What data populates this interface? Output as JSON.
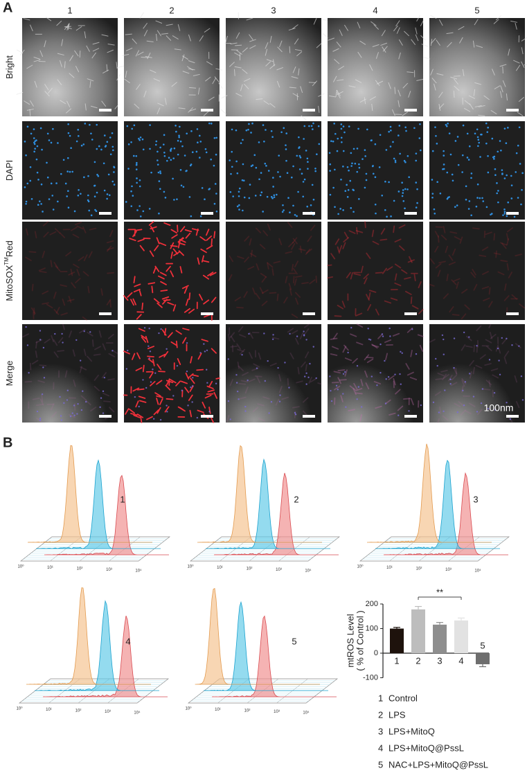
{
  "figure": {
    "panel_a": {
      "label": "A",
      "columns": [
        "1",
        "2",
        "3",
        "4",
        "5"
      ],
      "rows": [
        {
          "label": "Bright"
        },
        {
          "label": "DAPI"
        },
        {
          "label": "MitoSOX",
          "superscript": "TM",
          "suffix": "Red"
        },
        {
          "label": "Merge"
        }
      ],
      "scale_bar_label": "100nm"
    },
    "panel_b": {
      "label": "B",
      "histograms": [
        "1",
        "2",
        "3",
        "4",
        "5"
      ],
      "axis_ticks": [
        "10⁰",
        "10¹",
        "10²",
        "10³",
        "10⁴"
      ]
    }
  },
  "chart_data": {
    "type": "bar",
    "ylabel_lines": [
      "mtROS Level",
      "( % of Control )"
    ],
    "categories": [
      "1",
      "2",
      "3",
      "4",
      "5"
    ],
    "values": [
      100,
      178,
      116,
      133,
      -45
    ],
    "errors": [
      5,
      12,
      9,
      10,
      10
    ],
    "colors": [
      "#1e120c",
      "#bdbdbd",
      "#8e8e8e",
      "#e2e2e2",
      "#6e6e6e"
    ],
    "ylim": [
      -100,
      200
    ],
    "yticks": [
      -100,
      0,
      100,
      200
    ],
    "significance": {
      "from": "2",
      "to": "4",
      "label": "**"
    },
    "legend": [
      {
        "number": "1",
        "label": "Control"
      },
      {
        "number": "2",
        "label": "LPS"
      },
      {
        "number": "3",
        "label": "LPS+MitoQ"
      },
      {
        "number": "4",
        "label": "LPS+MitoQ@PssL"
      },
      {
        "number": "5",
        "label": "NAC+LPS+MitoQ@PssL"
      }
    ]
  }
}
